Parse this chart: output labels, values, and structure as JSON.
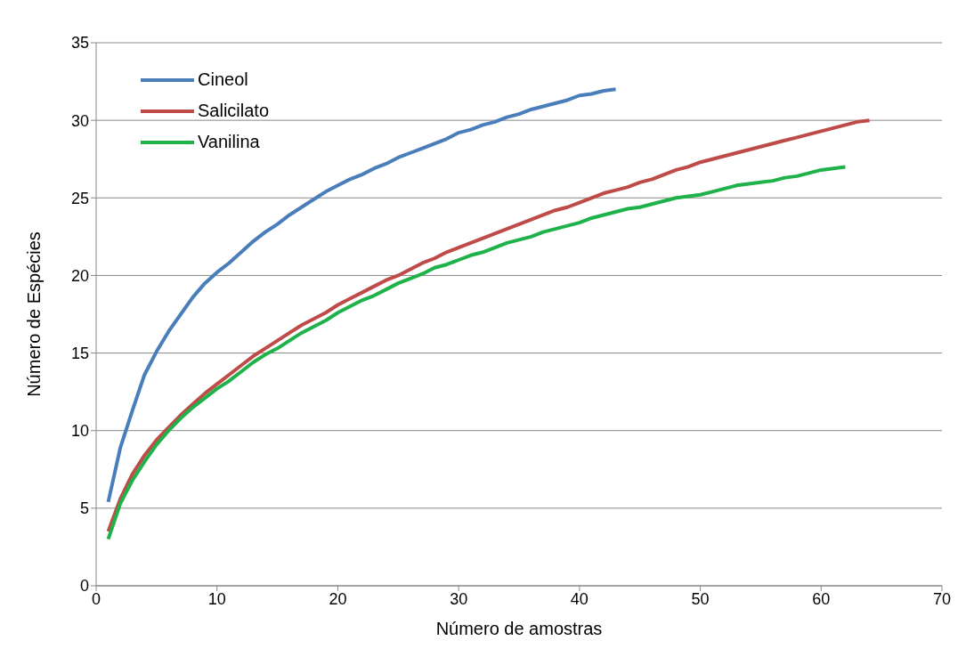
{
  "chart_data": {
    "type": "line",
    "xlabel": "Número de amostras",
    "ylabel": "Número de Espécies",
    "xlim": [
      0,
      70
    ],
    "xticks": [
      0,
      10,
      20,
      30,
      40,
      50,
      60,
      70
    ],
    "ylim": [
      0,
      35
    ],
    "yticks": [
      0,
      5,
      10,
      15,
      20,
      25,
      30,
      35
    ],
    "grid": "y",
    "legend": "top left",
    "marker": "none",
    "line_style": "solid",
    "series": [
      {
        "name": "Cineol",
        "color": "#4a7ebb",
        "x": [
          1,
          2,
          3,
          4,
          5,
          6,
          7,
          8,
          9,
          10,
          11,
          12,
          13,
          14,
          15,
          16,
          17,
          18,
          19,
          20,
          21,
          22,
          23,
          24,
          25,
          26,
          27,
          28,
          29,
          30,
          31,
          32,
          33,
          34,
          35,
          36,
          37,
          38,
          39,
          40,
          41,
          42,
          43
        ],
        "values": [
          5.4,
          8.9,
          11.3,
          13.6,
          15.1,
          16.4,
          17.5,
          18.6,
          19.5,
          20.2,
          20.8,
          21.5,
          22.2,
          22.8,
          23.3,
          23.9,
          24.4,
          24.9,
          25.4,
          25.8,
          26.2,
          26.5,
          26.9,
          27.2,
          27.6,
          27.9,
          28.2,
          28.5,
          28.8,
          29.2,
          29.4,
          29.7,
          29.9,
          30.2,
          30.4,
          30.7,
          30.9,
          31.1,
          31.3,
          31.6,
          31.7,
          31.9,
          32.0
        ]
      },
      {
        "name": "Salicilato",
        "color": "#be4b48",
        "x": [
          1,
          2,
          3,
          4,
          5,
          6,
          7,
          8,
          9,
          10,
          11,
          12,
          13,
          14,
          15,
          16,
          17,
          18,
          19,
          20,
          21,
          22,
          23,
          24,
          25,
          26,
          27,
          28,
          29,
          30,
          31,
          32,
          33,
          34,
          35,
          36,
          37,
          38,
          39,
          40,
          41,
          42,
          43,
          44,
          45,
          46,
          47,
          48,
          49,
          50,
          51,
          52,
          53,
          54,
          55,
          56,
          57,
          58,
          59,
          60,
          61,
          62,
          63,
          64
        ],
        "values": [
          3.5,
          5.6,
          7.2,
          8.4,
          9.4,
          10.2,
          11.0,
          11.7,
          12.4,
          13.0,
          13.6,
          14.2,
          14.8,
          15.3,
          15.8,
          16.3,
          16.8,
          17.2,
          17.6,
          18.1,
          18.5,
          18.9,
          19.3,
          19.7,
          20.0,
          20.4,
          20.8,
          21.1,
          21.5,
          21.8,
          22.1,
          22.4,
          22.7,
          23.0,
          23.3,
          23.6,
          23.9,
          24.2,
          24.4,
          24.7,
          25.0,
          25.3,
          25.5,
          25.7,
          26.0,
          26.2,
          26.5,
          26.8,
          27.0,
          27.3,
          27.5,
          27.7,
          27.9,
          28.1,
          28.3,
          28.5,
          28.7,
          28.9,
          29.1,
          29.3,
          29.5,
          29.7,
          29.9,
          30.0
        ]
      },
      {
        "name": "Vanilina",
        "color": "#1fb24a",
        "x": [
          1,
          2,
          3,
          4,
          5,
          6,
          7,
          8,
          9,
          10,
          11,
          12,
          13,
          14,
          15,
          16,
          17,
          18,
          19,
          20,
          21,
          22,
          23,
          24,
          25,
          26,
          27,
          28,
          29,
          30,
          31,
          32,
          33,
          34,
          35,
          36,
          37,
          38,
          39,
          40,
          41,
          42,
          43,
          44,
          45,
          46,
          47,
          48,
          49,
          50,
          51,
          52,
          53,
          54,
          55,
          56,
          57,
          58,
          59,
          60,
          61,
          62
        ],
        "values": [
          3.0,
          5.3,
          6.8,
          8.0,
          9.1,
          10.0,
          10.8,
          11.5,
          12.1,
          12.7,
          13.2,
          13.8,
          14.4,
          14.9,
          15.3,
          15.8,
          16.3,
          16.7,
          17.1,
          17.6,
          18.0,
          18.4,
          18.7,
          19.1,
          19.5,
          19.8,
          20.1,
          20.5,
          20.7,
          21.0,
          21.3,
          21.5,
          21.8,
          22.1,
          22.3,
          22.5,
          22.8,
          23.0,
          23.2,
          23.4,
          23.7,
          23.9,
          24.1,
          24.3,
          24.4,
          24.6,
          24.8,
          25.0,
          25.1,
          25.2,
          25.4,
          25.6,
          25.8,
          25.9,
          26.0,
          26.1,
          26.3,
          26.4,
          26.6,
          26.8,
          26.9,
          27.0
        ]
      }
    ]
  }
}
